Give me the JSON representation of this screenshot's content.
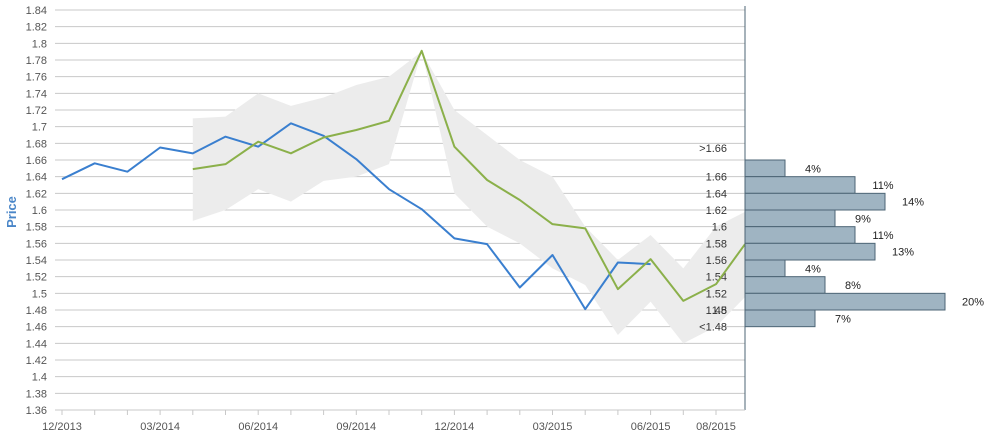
{
  "chart_data": {
    "type": "line",
    "ylabel": "Price",
    "ylim": [
      1.36,
      1.84
    ],
    "y_ticks": [
      "1.36",
      "1.38",
      "1.4",
      "1.42",
      "1.44",
      "1.46",
      "1.48",
      "1.5",
      "1.52",
      "1.54",
      "1.56",
      "1.58",
      "1.6",
      "1.62",
      "1.64",
      "1.66",
      "1.68",
      "1.7",
      "1.72",
      "1.74",
      "1.76",
      "1.78",
      "1.8",
      "1.82",
      "1.84"
    ],
    "x_tick_labels": [
      "12/2013",
      "03/2014",
      "06/2014",
      "09/2014",
      "12/2014",
      "03/2015",
      "06/2015",
      "08/2015"
    ],
    "grid": true,
    "colors": {
      "blue_series": "#3a7fcf",
      "green_series": "#8bb04a",
      "band": "#ececec",
      "histogram": "#9fb4c2",
      "histogram_border": "#4d6575",
      "axis_title": "#4a86c8"
    },
    "series": [
      {
        "x": [
          "12/2013",
          "01/2014",
          "02/2014",
          "03/2014",
          "04/2014",
          "05/2014",
          "06/2014",
          "07/2014",
          "08/2014",
          "09/2014",
          "10/2014",
          "11/2014",
          "12/2014",
          "01/2015",
          "02/2015",
          "03/2015",
          "04/2015",
          "05/2015",
          "06/2015"
        ],
        "values": [
          1.637,
          1.656,
          1.646,
          1.675,
          1.668,
          1.688,
          1.676,
          1.704,
          1.689,
          1.661,
          1.625,
          1.601,
          1.566,
          1.559,
          1.507,
          1.546,
          1.481,
          1.537,
          1.535
        ]
      },
      {
        "x": [
          "04/2014",
          "05/2014",
          "06/2014",
          "07/2014",
          "08/2014",
          "09/2014",
          "10/2014",
          "11/2014",
          "12/2014",
          "01/2015",
          "02/2015",
          "03/2015",
          "04/2015",
          "05/2015",
          "06/2015",
          "07/2015",
          "08/2015",
          "09/2015"
        ],
        "values": [
          1.649,
          1.655,
          1.682,
          1.668,
          1.687,
          1.696,
          1.707,
          1.791,
          1.676,
          1.636,
          1.612,
          1.583,
          1.578,
          1.505,
          1.541,
          1.491,
          1.511,
          1.559
        ]
      }
    ],
    "band": {
      "x": [
        "04/2014",
        "05/2014",
        "06/2014",
        "07/2014",
        "08/2014",
        "09/2014",
        "10/2014",
        "11/2014",
        "12/2014",
        "01/2015",
        "02/2015",
        "03/2015",
        "04/2015",
        "05/2015",
        "06/2015",
        "07/2015",
        "08/2015",
        "09/2015"
      ],
      "upper": [
        1.71,
        1.712,
        1.74,
        1.725,
        1.735,
        1.75,
        1.76,
        1.79,
        1.72,
        1.69,
        1.66,
        1.64,
        1.58,
        1.54,
        1.57,
        1.53,
        1.58,
        1.6
      ],
      "lower": [
        1.587,
        1.6,
        1.625,
        1.61,
        1.635,
        1.64,
        1.655,
        1.79,
        1.62,
        1.58,
        1.56,
        1.53,
        1.51,
        1.45,
        1.49,
        1.44,
        1.46,
        1.5
      ]
    },
    "histogram": {
      "bins": [
        {
          "label": ">1.66",
          "percent": "4%",
          "value": 4,
          "from": 1.64,
          "to": 1.66
        },
        {
          "label": "1.66",
          "percent": "11%",
          "value": 11,
          "from": 1.62,
          "to": 1.64
        },
        {
          "label": "1.64",
          "percent": "14%",
          "value": 14,
          "from": 1.6,
          "to": 1.62
        },
        {
          "label": "1.62",
          "percent": "9%",
          "value": 9,
          "from": 1.58,
          "to": 1.6
        },
        {
          "label": "1.6",
          "percent": "11%",
          "value": 11,
          "from": 1.56,
          "to": 1.58
        },
        {
          "label": "1.58",
          "percent": "13%",
          "value": 13,
          "from": 1.54,
          "to": 1.56
        },
        {
          "label": "1.56",
          "percent": "4%",
          "value": 4,
          "from": 1.52,
          "to": 1.54
        },
        {
          "label": "1.54",
          "percent": "8%",
          "value": 8,
          "from": 1.5,
          "to": 1.52
        },
        {
          "label": "1.52",
          "percent": "20%",
          "value": 20,
          "from": 1.48,
          "to": 1.5
        },
        {
          "label": "1.5",
          "percent": "7%",
          "value": 7,
          "from": 1.46,
          "to": 1.48
        }
      ],
      "extra_labels": [
        "1.48",
        "<1.48"
      ]
    }
  }
}
